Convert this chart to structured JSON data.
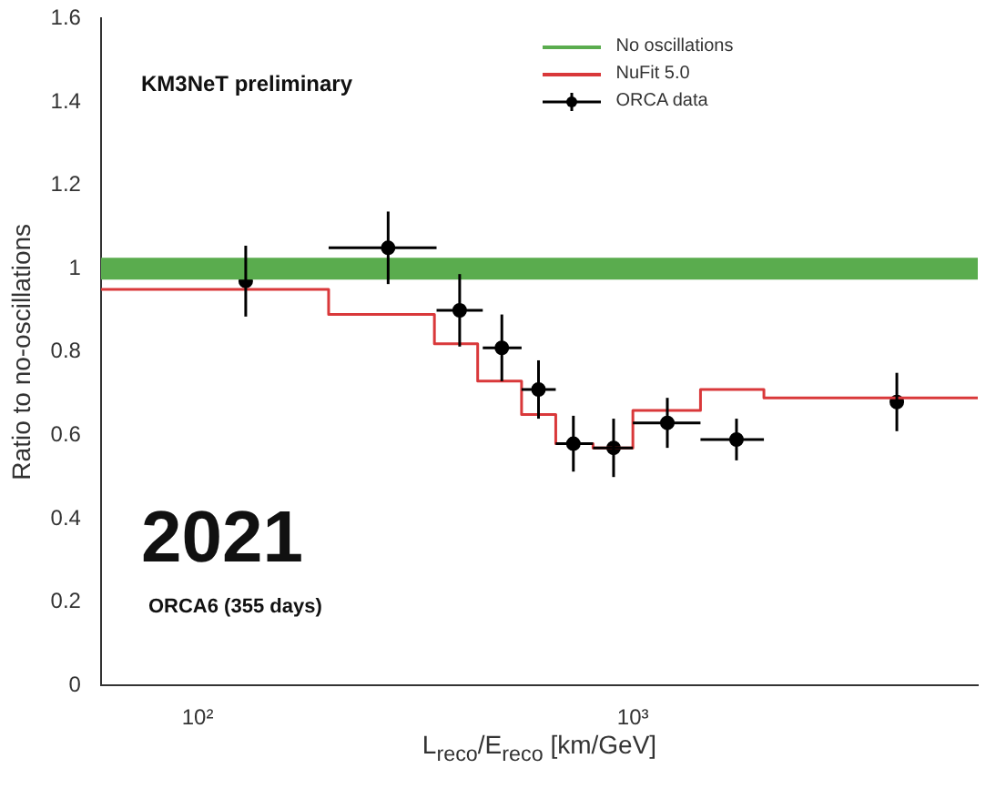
{
  "chart_data": {
    "type": "scatter",
    "xlabel": "L$_{reco}$/E$_{reco}$ [km/GeV]",
    "ylabel": "Ratio to no-oscillations",
    "annotations": [
      "KM3NeT preliminary",
      "2021",
      "ORCA6 (355 days)"
    ],
    "log": "x",
    "xlim": [
      60,
      6200
    ],
    "xticks": [
      {
        "value": 100,
        "label": "10²"
      },
      {
        "value": 1000,
        "label": "10³"
      }
    ],
    "ylim": [
      0,
      1.6
    ],
    "yticks": [
      0,
      0.2,
      0.4,
      0.6,
      0.8,
      1,
      1.2,
      1.4,
      1.6
    ],
    "grid": false,
    "legend": "top right",
    "series": [
      {
        "name": "No oscillations",
        "type": "line",
        "color": "#5aac4e",
        "x": [
          60,
          6200
        ],
        "values": [
          1,
          1
        ]
      },
      {
        "name": "NuFit 5.0",
        "type": "step",
        "color": "#d9383a",
        "x": [
          60,
          200,
          350,
          440,
          555,
          665,
          810,
          1000,
          1430,
          2000,
          6200
        ],
        "values": [
          0.95,
          0.89,
          0.82,
          0.73,
          0.65,
          0.58,
          0.57,
          0.66,
          0.71,
          0.69,
          0.69
        ]
      },
      {
        "name": "ORCA data",
        "color": "#000000",
        "marker": "circle",
        "x": [
          129,
          274,
          400,
          500,
          607,
          730,
          903,
          1200,
          1730,
          4040
        ],
        "values": [
          0.97,
          1.05,
          0.9,
          0.81,
          0.71,
          0.58,
          0.57,
          0.63,
          0.59,
          0.68
        ],
        "errors": [
          0.085,
          0.087,
          0.087,
          0.08,
          0.07,
          0.067,
          0.07,
          0.06,
          0.05,
          0.07
        ],
        "xerrors": [
          null,
          [
            200,
            354
          ],
          [
            354,
            452
          ],
          [
            452,
            555
          ],
          [
            555,
            665
          ],
          [
            665,
            810
          ],
          [
            810,
            1000
          ],
          [
            1000,
            1430
          ],
          [
            1430,
            2000
          ],
          null
        ]
      }
    ]
  }
}
